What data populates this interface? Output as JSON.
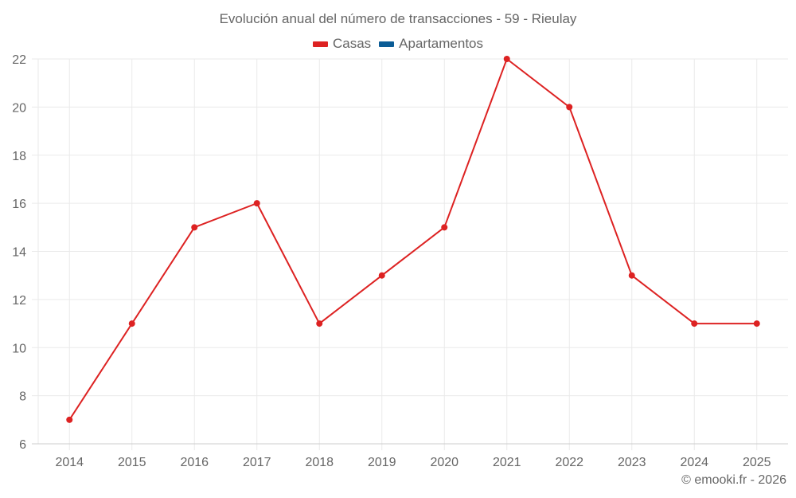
{
  "title": "Evolución anual del número de transacciones - 59 - Rieulay",
  "legend": [
    {
      "label": "Casas",
      "color": "#dd2222"
    },
    {
      "label": "Apartamentos",
      "color": "#0b5c96"
    }
  ],
  "credit": "© emooki.fr - 2026",
  "colors": {
    "line": "#dd2222",
    "grid": "#eaeaea",
    "axis": "#cccccc",
    "text": "#666666"
  },
  "chart_data": {
    "type": "line",
    "title": "Evolución anual del número de transacciones - 59 - Rieulay",
    "xlabel": "",
    "ylabel": "",
    "categories": [
      "2014",
      "2015",
      "2016",
      "2017",
      "2018",
      "2019",
      "2020",
      "2021",
      "2022",
      "2023",
      "2024",
      "2025"
    ],
    "series": [
      {
        "name": "Casas",
        "color": "#dd2222",
        "values": [
          7,
          11,
          15,
          16,
          11,
          13,
          15,
          22,
          20,
          13,
          11,
          11
        ]
      },
      {
        "name": "Apartamentos",
        "color": "#0b5c96",
        "values": []
      }
    ],
    "ylim": [
      6,
      22
    ],
    "yticks": [
      6,
      8,
      10,
      12,
      14,
      16,
      18,
      20,
      22
    ],
    "grid": true,
    "legend_position": "top"
  }
}
